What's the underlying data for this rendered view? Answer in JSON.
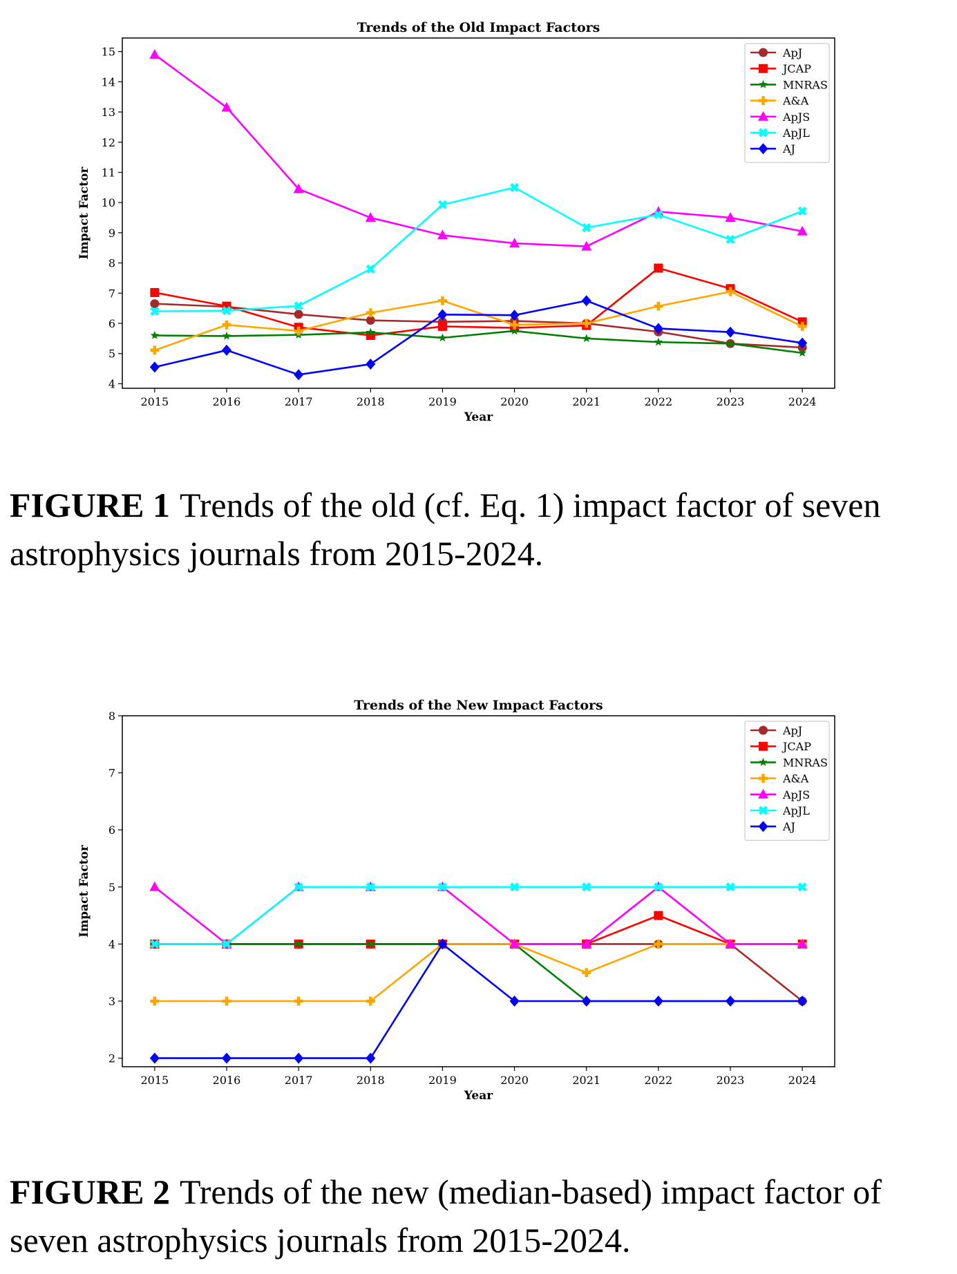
{
  "figures": [
    {
      "caption_label": "FIGURE 1",
      "caption_text": "Trends of the old (cf. Eq. 1) impact factor of seven astrophysics journals from 2015-2024.",
      "chart_data": {
        "type": "line",
        "title": "Trends of the Old Impact Factors",
        "xlabel": "Year",
        "ylabel": "Impact Factor",
        "x": [
          2015,
          2016,
          2017,
          2018,
          2019,
          2020,
          2021,
          2022,
          2023,
          2024
        ],
        "xlim": [
          2014.55,
          2024.45
        ],
        "ylim": [
          3.85,
          15.45
        ],
        "yticks": [
          4,
          5,
          6,
          7,
          8,
          9,
          10,
          11,
          12,
          13,
          14,
          15
        ],
        "grid": false,
        "legend_position": "top-right",
        "series": [
          {
            "name": "ApJ",
            "color": "#a52a2a",
            "marker": "circle",
            "values": [
              6.65,
              6.55,
              6.3,
              6.1,
              6.05,
              6.08,
              6.0,
              5.72,
              5.33,
              5.2
            ]
          },
          {
            "name": "JCAP",
            "color": "#ff0000",
            "marker": "square",
            "values": [
              7.02,
              6.57,
              5.87,
              5.6,
              5.9,
              5.85,
              5.93,
              7.83,
              7.15,
              6.05
            ]
          },
          {
            "name": "MNRAS",
            "color": "#008000",
            "marker": "star",
            "values": [
              5.6,
              5.58,
              5.62,
              5.7,
              5.52,
              5.75,
              5.5,
              5.38,
              5.33,
              5.02
            ]
          },
          {
            "name": "A&A",
            "color": "#ffa500",
            "marker": "plus",
            "values": [
              5.11,
              5.95,
              5.75,
              6.35,
              6.75,
              5.95,
              6.0,
              6.57,
              7.05,
              5.9
            ]
          },
          {
            "name": "ApJS",
            "color": "#ff00ff",
            "marker": "triangle",
            "values": [
              14.9,
              13.15,
              10.45,
              9.5,
              8.92,
              8.65,
              8.55,
              9.7,
              9.5,
              9.05
            ]
          },
          {
            "name": "ApJL",
            "color": "#00ffff",
            "marker": "x",
            "values": [
              6.4,
              6.42,
              6.58,
              7.8,
              9.93,
              10.5,
              9.17,
              9.6,
              8.78,
              9.72
            ]
          },
          {
            "name": "AJ",
            "color": "#0000ff",
            "marker": "diamond",
            "values": [
              4.55,
              5.11,
              4.3,
              4.65,
              6.29,
              6.27,
              6.75,
              5.83,
              5.71,
              5.35
            ]
          }
        ]
      }
    },
    {
      "caption_label": "FIGURE 2",
      "caption_text": "Trends of the new (median-based) impact factor of seven astrophysics journals from 2015-2024.",
      "chart_data": {
        "type": "line",
        "title": "Trends of the New Impact Factors",
        "xlabel": "Year",
        "ylabel": "Impact Factor",
        "x": [
          2015,
          2016,
          2017,
          2018,
          2019,
          2020,
          2021,
          2022,
          2023,
          2024
        ],
        "xlim": [
          2014.55,
          2024.45
        ],
        "ylim": [
          1.85,
          8.0
        ],
        "yticks": [
          2,
          3,
          4,
          5,
          6,
          7,
          8
        ],
        "grid": false,
        "legend_position": "top-right",
        "series": [
          {
            "name": "ApJ",
            "color": "#a52a2a",
            "marker": "circle",
            "values": [
              4,
              4,
              4,
              4,
              4,
              4,
              4,
              4,
              4,
              3
            ]
          },
          {
            "name": "JCAP",
            "color": "#ff0000",
            "marker": "square",
            "values": [
              4,
              4,
              4,
              4,
              4,
              4,
              4,
              4.5,
              4,
              4
            ]
          },
          {
            "name": "MNRAS",
            "color": "#008000",
            "marker": "star",
            "values": [
              4,
              4,
              4,
              4,
              4,
              4,
              3,
              3,
              3,
              3
            ]
          },
          {
            "name": "A&A",
            "color": "#ffa500",
            "marker": "plus",
            "values": [
              3,
              3,
              3,
              3,
              4,
              4,
              3.5,
              4,
              4,
              4
            ]
          },
          {
            "name": "ApJS",
            "color": "#ff00ff",
            "marker": "triangle",
            "values": [
              5,
              4,
              5,
              5,
              5,
              4,
              4,
              5,
              4,
              4
            ]
          },
          {
            "name": "ApJL",
            "color": "#00ffff",
            "marker": "x",
            "values": [
              4,
              4,
              5,
              5,
              5,
              5,
              5,
              5,
              5,
              5
            ]
          },
          {
            "name": "AJ",
            "color": "#0000ff",
            "marker": "diamond",
            "values": [
              2,
              2,
              2,
              2,
              4,
              3,
              3,
              3,
              3,
              3
            ]
          }
        ]
      }
    }
  ]
}
